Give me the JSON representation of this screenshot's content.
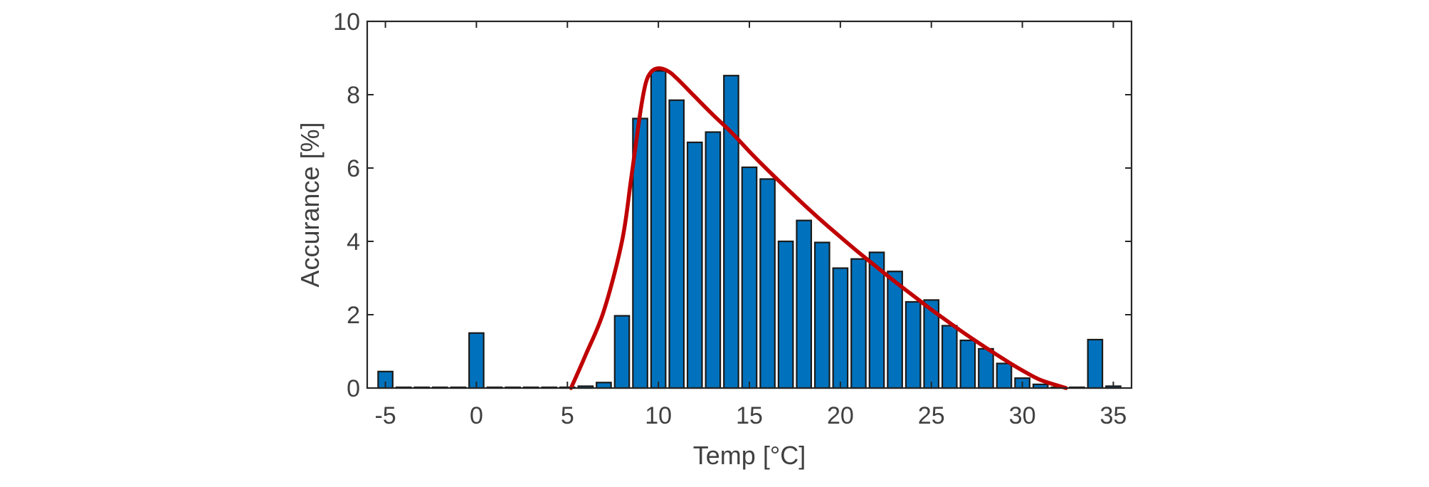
{
  "chart_data": {
    "type": "bar",
    "xlabel": "Temp [°C]",
    "ylabel": "Accurance [%]",
    "xlim": [
      -6,
      36
    ],
    "ylim": [
      0,
      10
    ],
    "x_ticks": [
      -5,
      0,
      5,
      10,
      15,
      20,
      25,
      30,
      35
    ],
    "y_ticks": [
      0,
      2,
      4,
      6,
      8,
      10
    ],
    "grid": false,
    "bar_width": 0.8,
    "bar_color": "#0072BD",
    "fit_color": "#C00000",
    "bins": [
      {
        "x": -5,
        "y": 0.45
      },
      {
        "x": -4,
        "y": 0.02
      },
      {
        "x": -3,
        "y": 0.02
      },
      {
        "x": -2,
        "y": 0.02
      },
      {
        "x": -1,
        "y": 0.02
      },
      {
        "x": 0,
        "y": 1.5
      },
      {
        "x": 1,
        "y": 0.02
      },
      {
        "x": 2,
        "y": 0.02
      },
      {
        "x": 3,
        "y": 0.02
      },
      {
        "x": 4,
        "y": 0.02
      },
      {
        "x": 5,
        "y": 0.02
      },
      {
        "x": 6,
        "y": 0.05
      },
      {
        "x": 7,
        "y": 0.15
      },
      {
        "x": 8,
        "y": 1.97
      },
      {
        "x": 9,
        "y": 7.35
      },
      {
        "x": 10,
        "y": 8.65
      },
      {
        "x": 11,
        "y": 7.85
      },
      {
        "x": 12,
        "y": 6.7
      },
      {
        "x": 13,
        "y": 6.98
      },
      {
        "x": 14,
        "y": 8.52
      },
      {
        "x": 15,
        "y": 6.02
      },
      {
        "x": 16,
        "y": 5.7
      },
      {
        "x": 17,
        "y": 4.0
      },
      {
        "x": 18,
        "y": 4.57
      },
      {
        "x": 19,
        "y": 3.97
      },
      {
        "x": 20,
        "y": 3.27
      },
      {
        "x": 21,
        "y": 3.52
      },
      {
        "x": 22,
        "y": 3.7
      },
      {
        "x": 23,
        "y": 3.18
      },
      {
        "x": 24,
        "y": 2.35
      },
      {
        "x": 25,
        "y": 2.4
      },
      {
        "x": 26,
        "y": 1.7
      },
      {
        "x": 27,
        "y": 1.3
      },
      {
        "x": 28,
        "y": 1.07
      },
      {
        "x": 29,
        "y": 0.67
      },
      {
        "x": 30,
        "y": 0.27
      },
      {
        "x": 31,
        "y": 0.1
      },
      {
        "x": 32,
        "y": 0.02
      },
      {
        "x": 33,
        "y": 0.02
      },
      {
        "x": 34,
        "y": 1.32
      },
      {
        "x": 35,
        "y": 0.05
      }
    ],
    "fit_curve": {
      "x": [
        5.2,
        6.0,
        7.0,
        8.0,
        8.5,
        9.0,
        9.3,
        9.6,
        10.0,
        10.5,
        11.0,
        12.0,
        13.0,
        14.0,
        15.0,
        16.0,
        17.0,
        18.0,
        19.0,
        20.0,
        21.0,
        22.0,
        23.0,
        24.0,
        25.0,
        26.0,
        27.0,
        28.0,
        29.0,
        30.0,
        31.0,
        32.4
      ],
      "y": [
        0.0,
        0.9,
        2.1,
        4.0,
        5.7,
        7.5,
        8.3,
        8.62,
        8.72,
        8.65,
        8.45,
        7.95,
        7.45,
        6.98,
        6.45,
        5.95,
        5.47,
        5.0,
        4.55,
        4.12,
        3.7,
        3.3,
        2.9,
        2.52,
        2.14,
        1.78,
        1.43,
        1.1,
        0.78,
        0.48,
        0.22,
        0.0
      ]
    }
  }
}
